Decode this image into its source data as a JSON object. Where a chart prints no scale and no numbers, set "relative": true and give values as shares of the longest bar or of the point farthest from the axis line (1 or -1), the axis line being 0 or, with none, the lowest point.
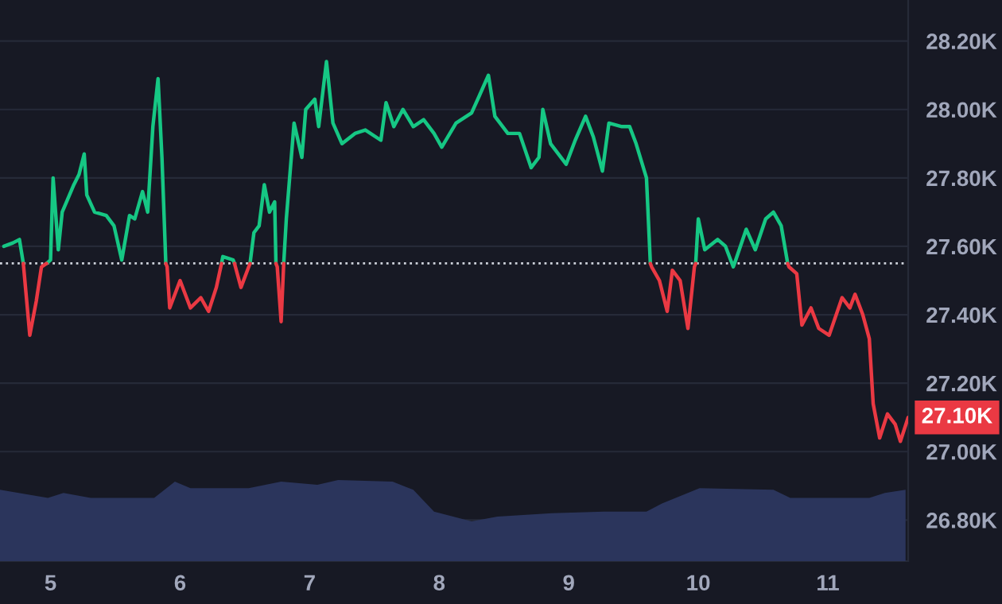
{
  "chart_data": [
    {
      "type": "line",
      "xlim": [
        4.61,
        11.62
      ],
      "ylim": [
        26.68,
        28.32
      ],
      "xticks": [
        5,
        6,
        7,
        8,
        9,
        10,
        11
      ],
      "yticks": [
        {
          "value": 26.8,
          "label": "26.80K"
        },
        {
          "value": 27.0,
          "label": "27.00K"
        },
        {
          "value": 27.2,
          "label": "27.20K"
        },
        {
          "value": 27.4,
          "label": "27.40K"
        },
        {
          "value": 27.6,
          "label": "27.60K"
        },
        {
          "value": 27.8,
          "label": "27.80K"
        },
        {
          "value": 28.0,
          "label": "28.00K"
        },
        {
          "value": 28.2,
          "label": "28.20K"
        }
      ],
      "grid": "y",
      "marker": "none",
      "line_style": "solid",
      "ref_lines": [
        {
          "axis": "y",
          "value": 27.55,
          "color": "#cfd3dc",
          "line_style": "dotted"
        }
      ],
      "annotations": [
        {
          "text": "27.10K",
          "x": 11.62,
          "y": 27.1
        }
      ],
      "x": [
        4.64,
        4.71,
        4.76,
        4.79,
        4.84,
        4.89,
        4.93,
        4.97,
        5.0,
        5.02,
        5.06,
        5.09,
        5.18,
        5.22,
        5.26,
        5.28,
        5.34,
        5.43,
        5.49,
        5.55,
        5.61,
        5.65,
        5.71,
        5.75,
        5.79,
        5.83,
        5.86,
        5.89,
        5.9,
        5.92,
        6.0,
        6.08,
        6.16,
        6.22,
        6.28,
        6.32,
        6.33,
        6.41,
        6.42,
        6.47,
        6.53,
        6.54,
        6.57,
        6.61,
        6.65,
        6.69,
        6.73,
        6.74,
        6.75,
        6.78,
        6.8,
        6.82,
        6.88,
        6.94,
        6.97,
        7.04,
        7.07,
        7.13,
        7.18,
        7.25,
        7.35,
        7.43,
        7.55,
        7.59,
        7.65,
        7.72,
        7.8,
        7.88,
        7.96,
        8.02,
        8.13,
        8.25,
        8.31,
        8.38,
        8.43,
        8.53,
        8.62,
        8.71,
        8.77,
        8.8,
        8.86,
        8.98,
        9.05,
        9.13,
        9.19,
        9.26,
        9.31,
        9.41,
        9.47,
        9.52,
        9.6,
        9.63,
        9.64,
        9.7,
        9.76,
        9.8,
        9.86,
        9.92,
        9.97,
        9.98,
        10.0,
        10.05,
        10.15,
        10.21,
        10.26,
        10.27,
        10.28,
        10.37,
        10.44,
        10.52,
        10.58,
        10.64,
        10.69,
        10.7,
        10.76,
        10.8,
        10.87,
        10.93,
        11.01,
        11.11,
        11.17,
        11.21,
        11.27,
        11.32,
        11.35,
        11.4,
        11.46,
        11.52,
        11.56,
        11.62
      ],
      "series": [
        {
          "color": "#16c784",
          "values": [
            27.6,
            27.61,
            27.62,
            27.55,
            null,
            null,
            null,
            27.55,
            27.56,
            27.8,
            27.59,
            27.7,
            27.78,
            27.81,
            27.87,
            27.75,
            27.7,
            27.69,
            27.66,
            27.56,
            27.69,
            27.68,
            27.76,
            27.7,
            27.95,
            28.09,
            27.86,
            27.55,
            null,
            null,
            null,
            null,
            null,
            null,
            null,
            27.55,
            27.57,
            27.56,
            27.55,
            null,
            null,
            27.55,
            27.64,
            27.66,
            27.78,
            27.7,
            27.73,
            27.55,
            null,
            null,
            27.55,
            27.68,
            27.96,
            27.86,
            28.0,
            28.03,
            27.95,
            28.14,
            27.96,
            27.9,
            27.93,
            27.94,
            27.91,
            28.02,
            27.95,
            28.0,
            27.95,
            27.97,
            27.93,
            27.89,
            27.96,
            27.99,
            28.04,
            28.1,
            27.98,
            27.93,
            27.93,
            27.83,
            27.86,
            28.0,
            27.9,
            27.84,
            27.91,
            27.98,
            27.92,
            27.82,
            27.96,
            27.95,
            27.95,
            27.9,
            27.8,
            27.55,
            null,
            null,
            null,
            null,
            null,
            null,
            null,
            27.55,
            27.68,
            27.59,
            27.62,
            27.6,
            27.55,
            27.54,
            27.55,
            27.65,
            27.59,
            27.68,
            27.7,
            27.66,
            27.55,
            null,
            null,
            null,
            null,
            null,
            null,
            null,
            null,
            null,
            null,
            null,
            null,
            null,
            null,
            null,
            null,
            null
          ]
        },
        {
          "color": "#ea3943",
          "values": [
            null,
            null,
            null,
            27.55,
            27.34,
            27.44,
            27.54,
            27.55,
            null,
            null,
            null,
            null,
            null,
            null,
            null,
            null,
            null,
            null,
            null,
            null,
            null,
            null,
            null,
            null,
            null,
            null,
            null,
            27.55,
            27.54,
            27.42,
            27.5,
            27.42,
            27.45,
            27.41,
            27.48,
            27.55,
            null,
            null,
            27.55,
            27.48,
            27.54,
            27.55,
            null,
            null,
            null,
            null,
            null,
            27.55,
            27.54,
            27.38,
            27.55,
            null,
            null,
            null,
            null,
            null,
            null,
            null,
            null,
            null,
            null,
            null,
            null,
            null,
            null,
            null,
            null,
            null,
            null,
            null,
            null,
            null,
            null,
            null,
            null,
            null,
            null,
            null,
            null,
            null,
            null,
            null,
            null,
            null,
            null,
            null,
            null,
            null,
            null,
            null,
            null,
            27.55,
            27.54,
            27.5,
            27.41,
            27.53,
            27.5,
            27.36,
            27.54,
            27.55,
            null,
            null,
            null,
            null,
            null,
            null,
            null,
            null,
            null,
            null,
            null,
            null,
            27.55,
            27.54,
            27.52,
            27.37,
            27.42,
            27.36,
            27.34,
            27.45,
            27.42,
            27.46,
            27.4,
            27.33,
            27.14,
            27.04,
            27.11,
            27.08,
            27.03,
            27.1
          ]
        }
      ]
    },
    {
      "type": "area",
      "relative": true,
      "tick_labels": false,
      "xlim": [
        4.61,
        11.62
      ],
      "color": "#2b355c",
      "x": [
        4.61,
        4.98,
        5.1,
        5.31,
        5.8,
        5.96,
        6.08,
        6.53,
        6.78,
        7.06,
        7.22,
        7.64,
        7.8,
        7.96,
        8.25,
        8.45,
        8.87,
        9.27,
        9.6,
        9.72,
        10.01,
        10.58,
        10.71,
        10.87,
        11.32,
        11.44,
        11.6
      ],
      "values": [
        0.88,
        0.78,
        0.84,
        0.78,
        0.78,
        0.98,
        0.9,
        0.9,
        0.98,
        0.94,
        1,
        0.98,
        0.88,
        0.61,
        0.49,
        0.55,
        0.59,
        0.61,
        0.61,
        0.71,
        0.9,
        0.88,
        0.78,
        0.78,
        0.78,
        0.84,
        0.88
      ]
    }
  ]
}
